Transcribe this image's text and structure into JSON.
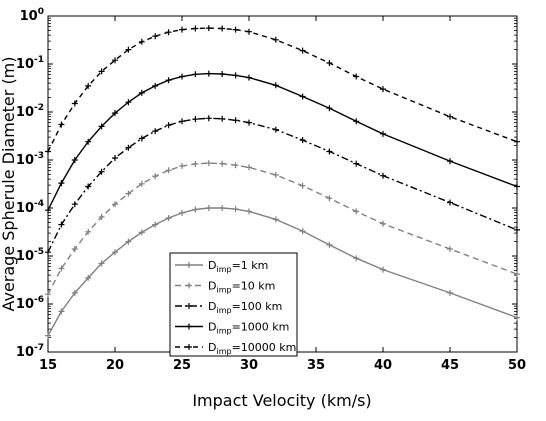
{
  "chart_data": {
    "type": "line",
    "title": "",
    "xlabel": "Impact Velocity (km/s)",
    "ylabel": "Average Spherule Diameter (m)",
    "xlim": [
      15,
      50
    ],
    "ylim": [
      1e-07,
      1
    ],
    "yscale": "log",
    "grid": false,
    "legend_position": "bottom-left",
    "x_ticks": [
      "15",
      "20",
      "25",
      "30",
      "35",
      "40",
      "45",
      "50"
    ],
    "y_ticks": [
      {
        "mantissa": "10",
        "exp": "-7"
      },
      {
        "mantissa": "10",
        "exp": "-6"
      },
      {
        "mantissa": "10",
        "exp": "-5"
      },
      {
        "mantissa": "10",
        "exp": "-4"
      },
      {
        "mantissa": "10",
        "exp": "-3"
      },
      {
        "mantissa": "10",
        "exp": "-2"
      },
      {
        "mantissa": "10",
        "exp": "-1"
      },
      {
        "mantissa": "10",
        "exp": "0"
      }
    ],
    "x": [
      15,
      16,
      17,
      18,
      19,
      20,
      21,
      22,
      23,
      24,
      25,
      26,
      27,
      28,
      29,
      30,
      32,
      34,
      36,
      38,
      40,
      45,
      50
    ],
    "series": [
      {
        "name": "D_imp=1 km",
        "legend_base": "D",
        "legend_sub": "imp",
        "legend_rest": "=1 km",
        "color": "#808080",
        "dash": "",
        "marker": "+",
        "values": [
          2.2e-07,
          7e-07,
          1.7e-06,
          3.5e-06,
          7e-06,
          1.2e-05,
          2e-05,
          3.1e-05,
          4.5e-05,
          6.2e-05,
          7.9e-05,
          9.3e-05,
          0.0001,
          0.0001,
          9.5e-05,
          8.5e-05,
          5.8e-05,
          3.3e-05,
          1.7e-05,
          9e-06,
          5.2e-06,
          1.7e-06,
          5.2e-07
        ]
      },
      {
        "name": "D_imp=10 km",
        "legend_base": "D",
        "legend_sub": "imp",
        "legend_rest": "=10 km",
        "color": "#808080",
        "dash": "6,4",
        "marker": "+",
        "values": [
          1.6e-06,
          5.5e-06,
          1.4e-05,
          3.2e-05,
          6.5e-05,
          0.00012,
          0.0002,
          0.00032,
          0.00046,
          0.00061,
          0.00075,
          0.00083,
          0.00086,
          0.00084,
          0.00078,
          0.0007,
          0.00049,
          0.00029,
          0.00016,
          8.5e-05,
          4.7e-05,
          1.4e-05,
          4.2e-06
        ]
      },
      {
        "name": "D_imp=100 km",
        "legend_base": "D",
        "legend_sub": "imp",
        "legend_rest": "=100 km",
        "color": "#000000",
        "dash": "7,3,2,3",
        "marker": "+",
        "values": [
          1.2e-05,
          4.5e-05,
          0.00012,
          0.00028,
          0.00057,
          0.0011,
          0.0018,
          0.0028,
          0.004,
          0.0053,
          0.0064,
          0.0071,
          0.0074,
          0.0072,
          0.0067,
          0.006,
          0.0043,
          0.0026,
          0.0015,
          0.00084,
          0.00047,
          0.00013,
          3.5e-05
        ]
      },
      {
        "name": "D_imp=1000 km",
        "legend_base": "D",
        "legend_sub": "imp",
        "legend_rest": "=1000 km",
        "color": "#000000",
        "dash": "",
        "marker": "+",
        "values": [
          9e-05,
          0.00033,
          0.001,
          0.0024,
          0.005,
          0.0095,
          0.016,
          0.025,
          0.035,
          0.046,
          0.055,
          0.061,
          0.063,
          0.062,
          0.058,
          0.052,
          0.036,
          0.021,
          0.012,
          0.0064,
          0.0035,
          0.00095,
          0.00028
        ]
      },
      {
        "name": "D_imp=10000 km",
        "legend_base": "D",
        "legend_sub": "imp",
        "legend_rest": "=10000 km",
        "color": "#000000",
        "dash": "5,4",
        "marker": "+",
        "values": [
          0.0015,
          0.0055,
          0.015,
          0.035,
          0.07,
          0.12,
          0.2,
          0.29,
          0.38,
          0.46,
          0.52,
          0.55,
          0.56,
          0.55,
          0.52,
          0.47,
          0.32,
          0.19,
          0.105,
          0.055,
          0.03,
          0.008,
          0.0024
        ]
      }
    ]
  }
}
